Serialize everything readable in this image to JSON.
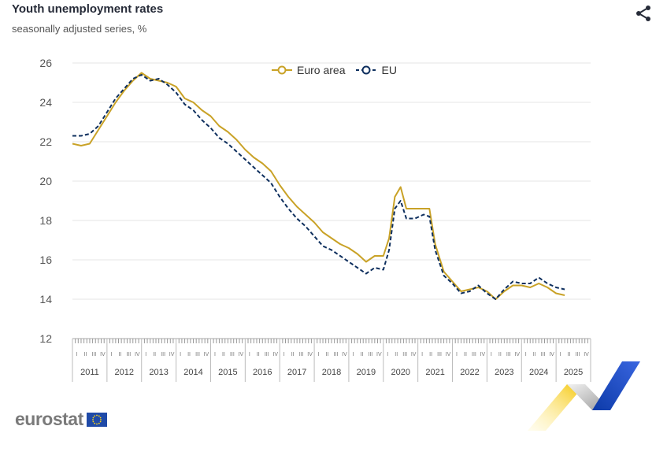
{
  "header": {
    "title": "Youth unemployment rates",
    "subtitle": "seasonally adjusted series, %",
    "share_icon": "share-icon"
  },
  "logo": {
    "text": "eurostat",
    "icon": "eu-flag-icon"
  },
  "colors": {
    "euro_area": "#c9a227",
    "eu": "#0e2f5e",
    "grid": "#e6e6e6",
    "axis_text": "#555555"
  },
  "chart_data": {
    "type": "line",
    "title": "Youth unemployment rates",
    "subtitle": "seasonally adjusted series, %",
    "xlabel": "",
    "ylabel": "",
    "ylim": [
      12,
      26
    ],
    "y_ticks": [
      "12",
      "14",
      "16",
      "18",
      "20",
      "22",
      "24",
      "26"
    ],
    "years": [
      "2011",
      "2012",
      "2013",
      "2014",
      "2015",
      "2016",
      "2017",
      "2018",
      "2019",
      "2020",
      "2021",
      "2022",
      "2023",
      "2024",
      "2025"
    ],
    "quarters": [
      "I",
      "II",
      "III",
      "IV"
    ],
    "x_range": [
      "2011-01",
      "2025-12"
    ],
    "grid": true,
    "legend_position": "top-center",
    "series": [
      {
        "name": "Euro area",
        "marker": "open-circle",
        "line_style": "solid",
        "points": [
          [
            "2011-01",
            21.9
          ],
          [
            "2011-04",
            21.8
          ],
          [
            "2011-07",
            21.9
          ],
          [
            "2011-10",
            22.6
          ],
          [
            "2012-01",
            23.3
          ],
          [
            "2012-04",
            24.0
          ],
          [
            "2012-07",
            24.6
          ],
          [
            "2012-10",
            25.1
          ],
          [
            "2013-01",
            25.5
          ],
          [
            "2013-04",
            25.2
          ],
          [
            "2013-07",
            25.1
          ],
          [
            "2013-10",
            25.0
          ],
          [
            "2014-01",
            24.8
          ],
          [
            "2014-04",
            24.2
          ],
          [
            "2014-07",
            24.0
          ],
          [
            "2014-10",
            23.6
          ],
          [
            "2015-01",
            23.3
          ],
          [
            "2015-04",
            22.8
          ],
          [
            "2015-07",
            22.5
          ],
          [
            "2015-10",
            22.1
          ],
          [
            "2016-01",
            21.6
          ],
          [
            "2016-04",
            21.2
          ],
          [
            "2016-07",
            20.9
          ],
          [
            "2016-10",
            20.5
          ],
          [
            "2017-01",
            19.8
          ],
          [
            "2017-04",
            19.2
          ],
          [
            "2017-07",
            18.7
          ],
          [
            "2017-10",
            18.3
          ],
          [
            "2018-01",
            17.9
          ],
          [
            "2018-04",
            17.4
          ],
          [
            "2018-07",
            17.1
          ],
          [
            "2018-10",
            16.8
          ],
          [
            "2019-01",
            16.6
          ],
          [
            "2019-04",
            16.3
          ],
          [
            "2019-07",
            15.9
          ],
          [
            "2019-10",
            16.2
          ],
          [
            "2020-01",
            16.2
          ],
          [
            "2020-03",
            17.1
          ],
          [
            "2020-05",
            19.2
          ],
          [
            "2020-07",
            19.7
          ],
          [
            "2020-09",
            18.6
          ],
          [
            "2020-12",
            18.6
          ],
          [
            "2021-03",
            18.6
          ],
          [
            "2021-05",
            18.6
          ],
          [
            "2021-07",
            16.8
          ],
          [
            "2021-10",
            15.4
          ],
          [
            "2022-01",
            14.9
          ],
          [
            "2022-04",
            14.4
          ],
          [
            "2022-07",
            14.5
          ],
          [
            "2022-10",
            14.6
          ],
          [
            "2023-01",
            14.4
          ],
          [
            "2023-04",
            14.0
          ],
          [
            "2023-07",
            14.4
          ],
          [
            "2023-10",
            14.7
          ],
          [
            "2024-01",
            14.7
          ],
          [
            "2024-04",
            14.6
          ],
          [
            "2024-07",
            14.8
          ],
          [
            "2024-10",
            14.6
          ],
          [
            "2025-01",
            14.3
          ],
          [
            "2025-04",
            14.2
          ]
        ]
      },
      {
        "name": "EU",
        "marker": "open-circle",
        "line_style": "dashed",
        "points": [
          [
            "2011-01",
            22.3
          ],
          [
            "2011-04",
            22.3
          ],
          [
            "2011-07",
            22.4
          ],
          [
            "2011-10",
            22.8
          ],
          [
            "2012-01",
            23.5
          ],
          [
            "2012-04",
            24.2
          ],
          [
            "2012-07",
            24.7
          ],
          [
            "2012-10",
            25.2
          ],
          [
            "2013-01",
            25.4
          ],
          [
            "2013-04",
            25.1
          ],
          [
            "2013-07",
            25.2
          ],
          [
            "2013-10",
            24.9
          ],
          [
            "2014-01",
            24.5
          ],
          [
            "2014-04",
            23.9
          ],
          [
            "2014-07",
            23.6
          ],
          [
            "2014-10",
            23.1
          ],
          [
            "2015-01",
            22.7
          ],
          [
            "2015-04",
            22.2
          ],
          [
            "2015-07",
            21.9
          ],
          [
            "2015-10",
            21.5
          ],
          [
            "2016-01",
            21.1
          ],
          [
            "2016-04",
            20.7
          ],
          [
            "2016-07",
            20.3
          ],
          [
            "2016-10",
            19.9
          ],
          [
            "2017-01",
            19.2
          ],
          [
            "2017-04",
            18.6
          ],
          [
            "2017-07",
            18.1
          ],
          [
            "2017-10",
            17.7
          ],
          [
            "2018-01",
            17.2
          ],
          [
            "2018-04",
            16.7
          ],
          [
            "2018-07",
            16.5
          ],
          [
            "2018-10",
            16.2
          ],
          [
            "2019-01",
            15.9
          ],
          [
            "2019-04",
            15.6
          ],
          [
            "2019-07",
            15.3
          ],
          [
            "2019-10",
            15.6
          ],
          [
            "2020-01",
            15.5
          ],
          [
            "2020-03",
            16.5
          ],
          [
            "2020-05",
            18.6
          ],
          [
            "2020-07",
            19.0
          ],
          [
            "2020-09",
            18.1
          ],
          [
            "2020-12",
            18.1
          ],
          [
            "2021-03",
            18.3
          ],
          [
            "2021-05",
            18.2
          ],
          [
            "2021-07",
            16.5
          ],
          [
            "2021-10",
            15.2
          ],
          [
            "2022-01",
            14.8
          ],
          [
            "2022-04",
            14.3
          ],
          [
            "2022-07",
            14.4
          ],
          [
            "2022-10",
            14.7
          ],
          [
            "2023-01",
            14.3
          ],
          [
            "2023-04",
            14.0
          ],
          [
            "2023-07",
            14.5
          ],
          [
            "2023-10",
            14.9
          ],
          [
            "2024-01",
            14.8
          ],
          [
            "2024-04",
            14.8
          ],
          [
            "2024-07",
            15.1
          ],
          [
            "2024-10",
            14.8
          ],
          [
            "2025-01",
            14.6
          ],
          [
            "2025-04",
            14.5
          ]
        ]
      }
    ]
  }
}
